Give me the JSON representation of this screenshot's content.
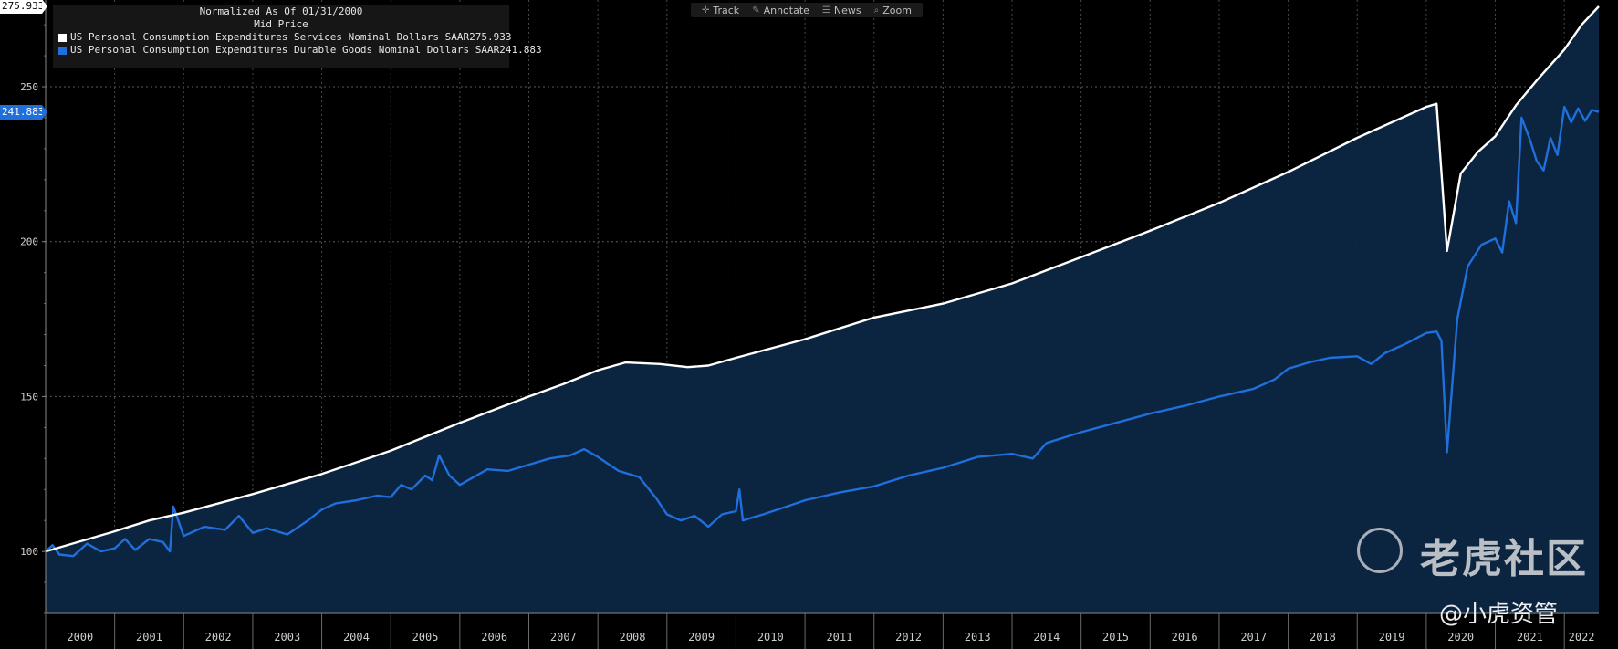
{
  "toolbar": {
    "items": [
      {
        "label": "Track",
        "icon": "crosshair-icon"
      },
      {
        "label": "Annotate",
        "icon": "pencil-icon"
      },
      {
        "label": "News",
        "icon": "news-icon"
      },
      {
        "label": "Zoom",
        "icon": "zoom-icon"
      }
    ]
  },
  "legend": {
    "header1": "Normalized As Of 01/31/2000",
    "header2": "Mid Price",
    "series": [
      {
        "label": "US Personal Consumption Expenditures Services Nominal Dollars SAAR",
        "value": "275.933",
        "color": "#ffffff"
      },
      {
        "label": "US Personal Consumption Expenditures Durable Goods Nominal Dollars SAAR",
        "value": "241.883",
        "color": "#1f6fdc"
      }
    ]
  },
  "last_value_tags": {
    "services": "275.933",
    "durables": "241.883"
  },
  "watermark": {
    "brand": "老虎社区",
    "handle": "@小虎资管"
  },
  "chart_data": {
    "type": "line",
    "title": "Normalized As Of 01/31/2000",
    "subtitle": "Mid Price",
    "xlabel": "",
    "ylabel": "",
    "ylim": [
      80,
      278
    ],
    "yticks": [
      100,
      150,
      200,
      250
    ],
    "xlim": [
      2000.0,
      2022.5
    ],
    "xtick_labels": [
      "2000",
      "2001",
      "2002",
      "2003",
      "2004",
      "2005",
      "2006",
      "2007",
      "2008",
      "2009",
      "2010",
      "2011",
      "2012",
      "2013",
      "2014",
      "2015",
      "2016",
      "2017",
      "2018",
      "2019",
      "2020",
      "2021",
      "2022"
    ],
    "grid": true,
    "series": [
      {
        "name": "US Personal Consumption Expenditures Services Nominal Dollars SAAR",
        "color": "#ffffff",
        "filled": true,
        "last": 275.933,
        "points": [
          [
            2000.0,
            100.0
          ],
          [
            2001.0,
            106.5
          ],
          [
            2001.5,
            110.0
          ],
          [
            2002.0,
            112.5
          ],
          [
            2003.0,
            118.5
          ],
          [
            2004.0,
            125.0
          ],
          [
            2005.0,
            132.5
          ],
          [
            2006.0,
            141.5
          ],
          [
            2007.0,
            150.0
          ],
          [
            2007.5,
            154.0
          ],
          [
            2008.0,
            158.5
          ],
          [
            2008.4,
            161.0
          ],
          [
            2008.9,
            160.5
          ],
          [
            2009.3,
            159.5
          ],
          [
            2009.6,
            160.0
          ],
          [
            2010.0,
            162.5
          ],
          [
            2011.0,
            168.5
          ],
          [
            2012.0,
            175.5
          ],
          [
            2013.0,
            180.0
          ],
          [
            2014.0,
            186.5
          ],
          [
            2015.0,
            195.0
          ],
          [
            2016.0,
            203.5
          ],
          [
            2017.0,
            212.5
          ],
          [
            2018.0,
            222.5
          ],
          [
            2019.0,
            233.5
          ],
          [
            2019.6,
            239.5
          ],
          [
            2020.0,
            243.5
          ],
          [
            2020.15,
            244.5
          ],
          [
            2020.3,
            197.0
          ],
          [
            2020.5,
            222.0
          ],
          [
            2020.75,
            229.0
          ],
          [
            2021.0,
            234.0
          ],
          [
            2021.3,
            244.0
          ],
          [
            2021.6,
            252.0
          ],
          [
            2022.0,
            262.0
          ],
          [
            2022.25,
            270.0
          ],
          [
            2022.5,
            275.933
          ]
        ]
      },
      {
        "name": "US Personal Consumption Expenditures Durable Goods Nominal Dollars SAAR",
        "color": "#1f6fdc",
        "filled": false,
        "last": 241.883,
        "points": [
          [
            2000.0,
            100.0
          ],
          [
            2000.1,
            102.0
          ],
          [
            2000.2,
            99.0
          ],
          [
            2000.4,
            98.5
          ],
          [
            2000.6,
            102.5
          ],
          [
            2000.8,
            100.0
          ],
          [
            2001.0,
            101.0
          ],
          [
            2001.15,
            104.0
          ],
          [
            2001.3,
            100.5
          ],
          [
            2001.5,
            104.0
          ],
          [
            2001.7,
            103.0
          ],
          [
            2001.8,
            100.0
          ],
          [
            2001.85,
            114.5
          ],
          [
            2002.0,
            105.0
          ],
          [
            2002.3,
            108.0
          ],
          [
            2002.6,
            107.0
          ],
          [
            2002.8,
            111.5
          ],
          [
            2003.0,
            106.0
          ],
          [
            2003.2,
            107.5
          ],
          [
            2003.5,
            105.5
          ],
          [
            2003.8,
            110.0
          ],
          [
            2004.0,
            113.5
          ],
          [
            2004.2,
            115.5
          ],
          [
            2004.5,
            116.5
          ],
          [
            2004.8,
            118.0
          ],
          [
            2005.0,
            117.5
          ],
          [
            2005.15,
            121.5
          ],
          [
            2005.3,
            120.0
          ],
          [
            2005.5,
            124.5
          ],
          [
            2005.6,
            123.0
          ],
          [
            2005.7,
            131.0
          ],
          [
            2005.85,
            124.5
          ],
          [
            2006.0,
            121.5
          ],
          [
            2006.2,
            124.0
          ],
          [
            2006.4,
            126.5
          ],
          [
            2006.7,
            126.0
          ],
          [
            2007.0,
            128.0
          ],
          [
            2007.3,
            130.0
          ],
          [
            2007.6,
            131.0
          ],
          [
            2007.8,
            133.0
          ],
          [
            2008.0,
            130.5
          ],
          [
            2008.3,
            126.0
          ],
          [
            2008.6,
            124.0
          ],
          [
            2008.85,
            117.0
          ],
          [
            2009.0,
            112.0
          ],
          [
            2009.2,
            110.0
          ],
          [
            2009.4,
            111.5
          ],
          [
            2009.6,
            108.0
          ],
          [
            2009.8,
            112.0
          ],
          [
            2010.0,
            113.0
          ],
          [
            2010.05,
            120.0
          ],
          [
            2010.1,
            110.0
          ],
          [
            2010.4,
            112.0
          ],
          [
            2010.8,
            115.0
          ],
          [
            2011.0,
            116.5
          ],
          [
            2011.5,
            119.0
          ],
          [
            2012.0,
            121.0
          ],
          [
            2012.5,
            124.5
          ],
          [
            2013.0,
            127.0
          ],
          [
            2013.5,
            130.5
          ],
          [
            2014.0,
            131.5
          ],
          [
            2014.3,
            130.0
          ],
          [
            2014.5,
            135.0
          ],
          [
            2015.0,
            138.5
          ],
          [
            2015.5,
            141.5
          ],
          [
            2016.0,
            144.5
          ],
          [
            2016.5,
            147.0
          ],
          [
            2017.0,
            150.0
          ],
          [
            2017.5,
            152.5
          ],
          [
            2017.8,
            155.5
          ],
          [
            2018.0,
            159.0
          ],
          [
            2018.3,
            161.0
          ],
          [
            2018.6,
            162.5
          ],
          [
            2019.0,
            163.0
          ],
          [
            2019.2,
            160.5
          ],
          [
            2019.4,
            164.0
          ],
          [
            2019.7,
            167.0
          ],
          [
            2020.0,
            170.5
          ],
          [
            2020.15,
            171.0
          ],
          [
            2020.22,
            168.0
          ],
          [
            2020.3,
            132.0
          ],
          [
            2020.45,
            175.0
          ],
          [
            2020.6,
            192.0
          ],
          [
            2020.8,
            199.0
          ],
          [
            2021.0,
            201.0
          ],
          [
            2021.1,
            196.5
          ],
          [
            2021.2,
            213.0
          ],
          [
            2021.3,
            206.0
          ],
          [
            2021.38,
            240.0
          ],
          [
            2021.5,
            233.0
          ],
          [
            2021.6,
            226.0
          ],
          [
            2021.7,
            223.0
          ],
          [
            2021.8,
            233.5
          ],
          [
            2021.9,
            228.0
          ],
          [
            2022.0,
            243.5
          ],
          [
            2022.1,
            238.5
          ],
          [
            2022.2,
            243.0
          ],
          [
            2022.3,
            239.0
          ],
          [
            2022.4,
            242.5
          ],
          [
            2022.5,
            241.883
          ]
        ]
      }
    ]
  }
}
